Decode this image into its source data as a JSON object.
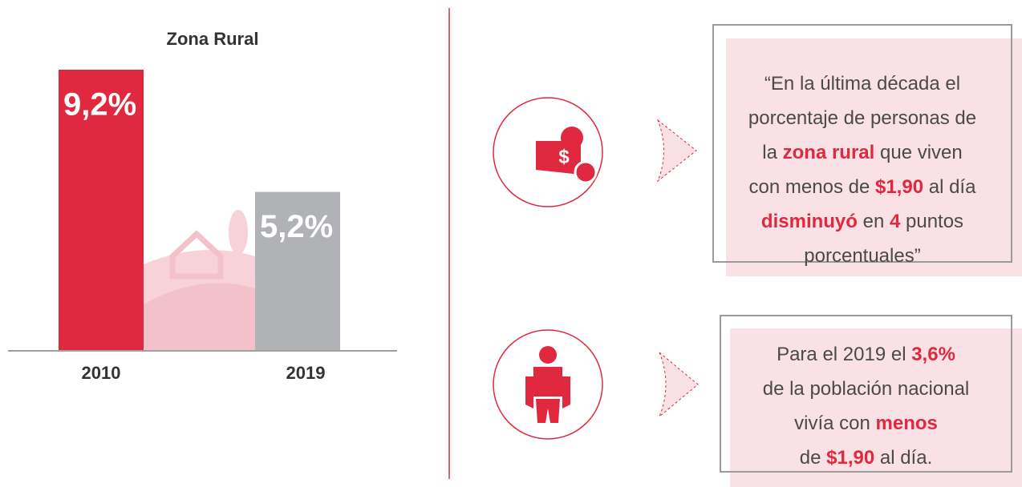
{
  "chart_data": {
    "type": "bar",
    "title": "Zona Rural",
    "categories": [
      "2010",
      "2019"
    ],
    "values": [
      9.2,
      5.2
    ],
    "value_labels": [
      "9,2%",
      "5,2%"
    ],
    "colors": [
      "#e0283f",
      "#b1b2b6"
    ]
  },
  "callouts": [
    {
      "lines": [
        [
          {
            "text": "“En la última década el"
          }
        ],
        [
          {
            "text": "porcentaje de personas de"
          }
        ],
        [
          {
            "text": "la "
          },
          {
            "text": "zona rural",
            "bold": true
          },
          {
            "text": " que viven"
          }
        ],
        [
          {
            "text": "con menos de "
          },
          {
            "text": "$1,90",
            "bold": true
          },
          {
            "text": " al día"
          }
        ],
        [
          {
            "text": "disminuyó",
            "bold": true
          },
          {
            "text": " en "
          },
          {
            "text": "4",
            "bold": true
          },
          {
            "text": " puntos"
          }
        ],
        [
          {
            "text": "porcentuales”"
          }
        ]
      ]
    },
    {
      "lines": [
        [
          {
            "text": "Para el 2019 el "
          },
          {
            "text": "3,6%",
            "bold": true
          }
        ],
        [
          {
            "text": "de la población nacional"
          }
        ],
        [
          {
            "text": "vivía con "
          },
          {
            "text": "menos",
            "bold": true
          }
        ],
        [
          {
            "text": "de "
          },
          {
            "text": "$1,90",
            "bold": true
          },
          {
            "text": " al día."
          }
        ]
      ]
    }
  ]
}
